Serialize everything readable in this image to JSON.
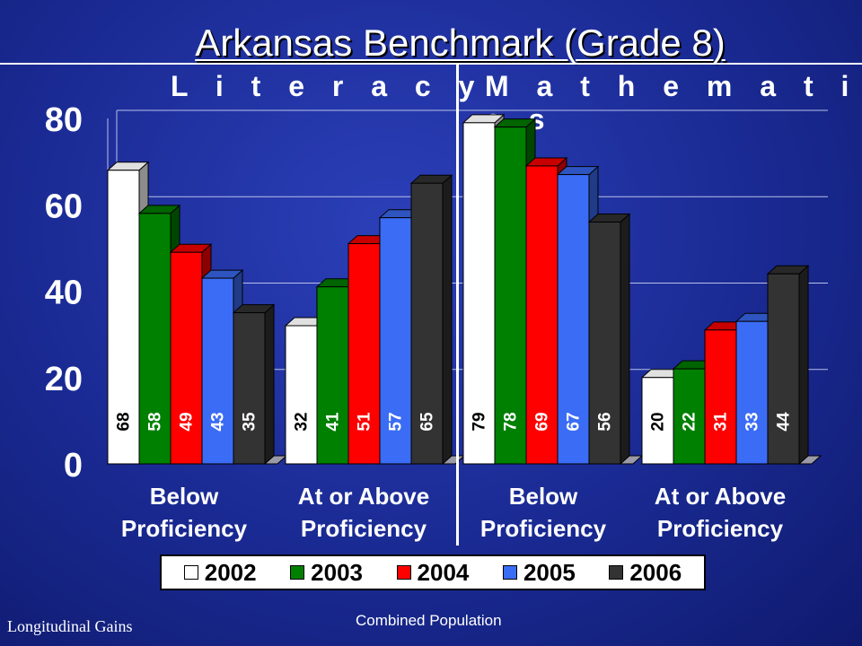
{
  "title": "Arkansas Benchmark (Grade 8)",
  "sections": [
    "Literacy",
    "Mathematics"
  ],
  "footer_left": "Longitudinal Gains",
  "footer_center": "Combined Population",
  "chart_data": {
    "type": "bar",
    "categories": [
      "Below Proficiency",
      "At or Above Proficiency",
      "Below Proficiency",
      "At or Above Proficiency"
    ],
    "category_lines": [
      [
        "Below",
        "Proficiency"
      ],
      [
        "At or Above",
        "Proficiency"
      ],
      [
        "Below",
        "Proficiency"
      ],
      [
        "At or Above",
        "Proficiency"
      ]
    ],
    "groups": [
      "Literacy",
      "Literacy",
      "Mathematics",
      "Mathematics"
    ],
    "series": [
      {
        "name": "2002",
        "color": "#ffffff",
        "values": [
          68,
          32,
          79,
          20
        ]
      },
      {
        "name": "2003",
        "color": "#008000",
        "values": [
          58,
          41,
          78,
          22
        ]
      },
      {
        "name": "2004",
        "color": "#ff0000",
        "values": [
          49,
          51,
          69,
          31
        ]
      },
      {
        "name": "2005",
        "color": "#3b6cf5",
        "values": [
          43,
          57,
          67,
          33
        ]
      },
      {
        "name": "2006",
        "color": "#333333",
        "values": [
          35,
          65,
          56,
          44
        ]
      }
    ],
    "ylim": [
      0,
      80
    ],
    "yticks": [
      0,
      20,
      40,
      60,
      80
    ],
    "grid": true,
    "legend": "bottom",
    "data_labels": true,
    "style": "3d-bar"
  }
}
